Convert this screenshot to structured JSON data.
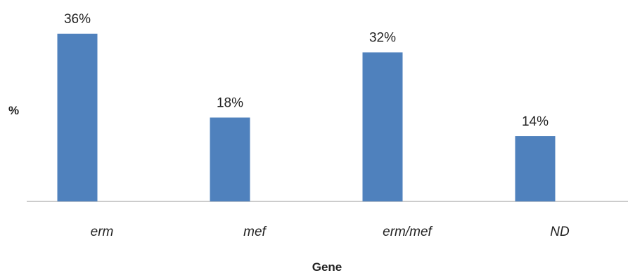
{
  "chart_data": {
    "type": "bar",
    "categories": [
      "erm",
      "mef",
      "erm/mef",
      "ND"
    ],
    "values": [
      36,
      18,
      32,
      14
    ],
    "data_labels": [
      "36%",
      "18%",
      "32%",
      "14%"
    ],
    "title": "",
    "xlabel": "Gene",
    "ylabel": "%",
    "ylim": [
      0,
      36
    ],
    "grid": false,
    "legend": "none",
    "bar_color": "#4F81BD",
    "axis_color": "#9A9A9A",
    "text_color": "#222222"
  }
}
